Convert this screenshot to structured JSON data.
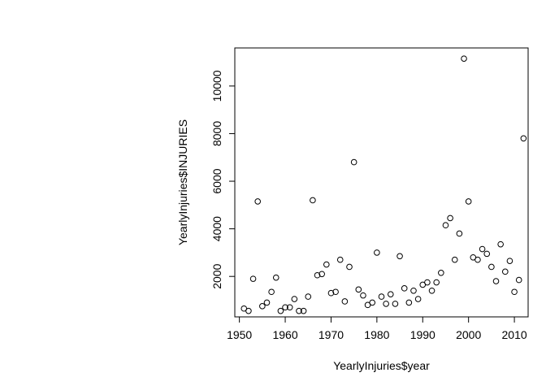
{
  "chart_data": {
    "type": "scatter",
    "title": "",
    "xlabel": "YearlyInjuries$year",
    "ylabel": "YearlyInjuries$INJURIES",
    "xlim": [
      1949,
      2013
    ],
    "ylim": [
      300,
      11600
    ],
    "xticks": [
      1950,
      1960,
      1970,
      1980,
      1990,
      2000,
      2010
    ],
    "yticks": [
      2000,
      4000,
      6000,
      8000,
      10000
    ],
    "grid": false,
    "legend": "none",
    "marker": "open-circle",
    "series": [
      {
        "x": [
          1951,
          1952,
          1953,
          1954,
          1955,
          1956,
          1957,
          1958,
          1959,
          1960,
          1961,
          1962,
          1963,
          1964,
          1965,
          1966,
          1967,
          1968,
          1969,
          1970,
          1971,
          1972,
          1973,
          1974,
          1975,
          1976,
          1977,
          1978,
          1979,
          1980,
          1981,
          1982,
          1983,
          1984,
          1985,
          1986,
          1987,
          1988,
          1989,
          1990,
          1991,
          1992,
          1993,
          1994,
          1995,
          1996,
          1997,
          1998,
          1999,
          2000,
          2001,
          2002,
          2003,
          2004,
          2005,
          2006,
          2007,
          2008,
          2009,
          2010,
          2011,
          2012
        ],
        "y": [
          650,
          550,
          1900,
          5150,
          750,
          900,
          1350,
          1950,
          550,
          700,
          700,
          1050,
          550,
          550,
          1150,
          5200,
          2050,
          2100,
          2500,
          1300,
          1350,
          2700,
          950,
          2400,
          6800,
          1450,
          1200,
          800,
          900,
          3000,
          1150,
          850,
          1250,
          850,
          2850,
          1500,
          900,
          1400,
          1050,
          1650,
          1750,
          1400,
          1750,
          2150,
          4150,
          4450,
          2700,
          3800,
          11150,
          5150,
          2800,
          2700,
          3150,
          2950,
          2400,
          1800,
          3350,
          2200,
          2650,
          1350,
          1850,
          7800
        ]
      }
    ]
  },
  "style": {
    "point_stroke": "#000000",
    "axis_color": "#000000",
    "background": "#ffffff"
  }
}
